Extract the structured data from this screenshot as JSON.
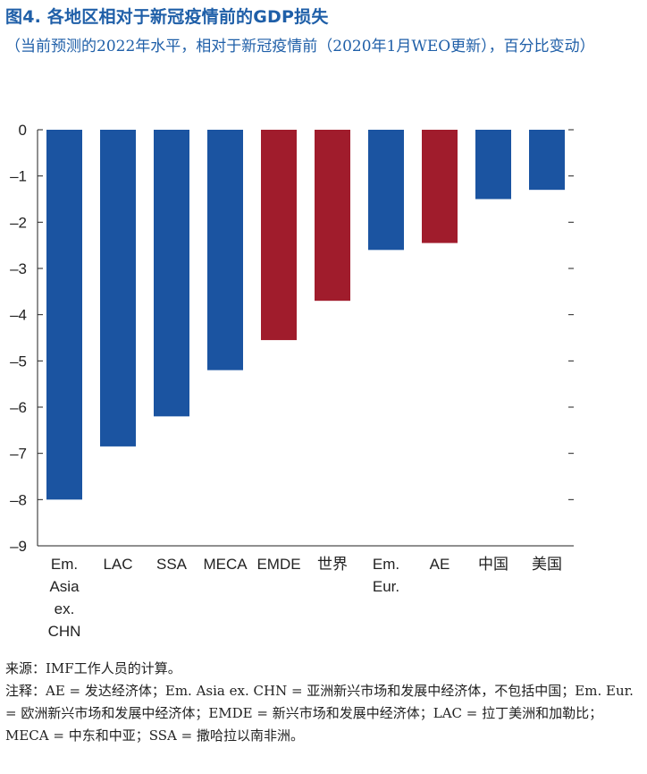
{
  "title": "图4. 各地区相对于新冠疫情前的GDP损失",
  "subtitle": "（当前预测的2022年水平，相对于新冠疫情前（2020年1月WEO更新），百分比变动）",
  "source": "来源：IMF工作人员的计算。",
  "note": "注释：AE = 发达经济体；Em. Asia ex. CHN = 亚洲新兴市场和发展中经济体，不包括中国；Em. Eur. = 欧洲新兴市场和发展中经济体；EMDE = 新兴市场和发展中经济体；LAC = 拉丁美洲和加勒比；MECA = 中东和中亚；SSA = 撒哈拉以南非洲。",
  "colors": {
    "blue": "#1b54a1",
    "red": "#a01c2c",
    "title": "#1f5fa8"
  },
  "chart_data": {
    "type": "bar",
    "categories": [
      [
        "Em.",
        "Asia",
        "ex.",
        "CHN"
      ],
      [
        "LAC"
      ],
      [
        "SSA"
      ],
      [
        "MECA"
      ],
      [
        "EMDE"
      ],
      [
        "世界"
      ],
      [
        "Em.",
        "Eur."
      ],
      [
        "AE"
      ],
      [
        "中国"
      ],
      [
        "美国"
      ]
    ],
    "values": [
      -8.0,
      -6.85,
      -6.2,
      -5.2,
      -4.55,
      -3.7,
      -2.6,
      -2.45,
      -1.5,
      -1.3
    ],
    "bar_colors": [
      "blue",
      "blue",
      "blue",
      "blue",
      "red",
      "red",
      "blue",
      "red",
      "blue",
      "blue"
    ],
    "ylim": [
      -9,
      0
    ],
    "yticks": [
      "0",
      "–1",
      "–2",
      "–3",
      "–4",
      "–5",
      "–6",
      "–7",
      "–8",
      "–9"
    ],
    "xlabel": "",
    "ylabel": "",
    "grid": false,
    "legend": "none"
  }
}
